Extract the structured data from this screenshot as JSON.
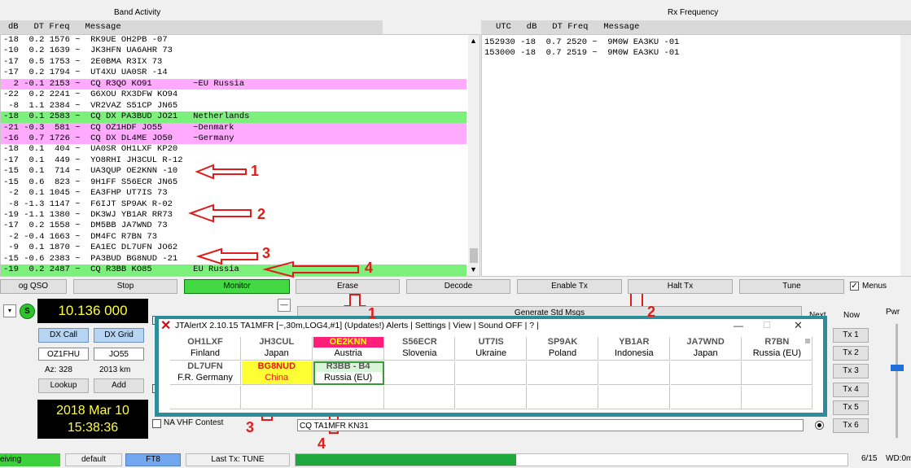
{
  "band_activity": {
    "title": "Band Activity",
    "header": "dB   DT Freq   Message",
    "rows": [
      {
        "text": "-18  0.2 1576 ~  RK9UE OH2PB -07",
        "bg": "#ffffff"
      },
      {
        "text": "-10  0.2 1639 ~  JK3HFN UA6AHR 73",
        "bg": "#ffffff"
      },
      {
        "text": "-17  0.5 1753 ~  2E0BMA R3IX 73",
        "bg": "#ffffff"
      },
      {
        "text": "-17  0.2 1794 ~  UT4XU UA0SR -14",
        "bg": "#ffffff"
      },
      {
        "text": "  2 -0.1 2153 ~  CQ R3QO KO91        ~EU Russia",
        "bg": "#ffaaff"
      },
      {
        "text": "-22  0.2 2241 ~  G6XOU RX3DFW KO94",
        "bg": "#ffffff"
      },
      {
        "text": " -8  1.1 2384 ~  VR2VAZ S51CP JN65",
        "bg": "#ffffff"
      },
      {
        "text": "-18  0.1 2583 ~  CQ DX PA3BUD JO21   Netherlands",
        "bg": "#7bf07b"
      },
      {
        "text": "-21 -0.3  581 ~  CQ OZ1HDF JO55      ~Denmark",
        "bg": "#ffaaff"
      },
      {
        "text": "-16  0.7 1726 ~  CQ DX DL4ME JO50    ~Germany",
        "bg": "#ffaaff"
      },
      {
        "text": "-18  0.1  404 ~  UA0SR OH1LXF KP20",
        "bg": "#ffffff"
      },
      {
        "text": "-17  0.1  449 ~  YO8RHI JH3CUL R-12",
        "bg": "#ffffff"
      },
      {
        "text": "-15  0.1  714 ~  UA3QUP OE2KNN -10",
        "bg": "#ffffff"
      },
      {
        "text": "-15  0.6  823 ~  9H1FF S56ECR JN65",
        "bg": "#ffffff"
      },
      {
        "text": " -2  0.1 1045 ~  EA3FHP UT7IS 73",
        "bg": "#ffffff"
      },
      {
        "text": " -8 -1.3 1147 ~  F6IJT SP9AK R-02",
        "bg": "#ffffff"
      },
      {
        "text": "-19 -1.1 1380 ~  DK3WJ YB1AR RR73",
        "bg": "#ffffff"
      },
      {
        "text": "-17  0.2 1558 ~  DM5BB JA7WND 73",
        "bg": "#ffffff"
      },
      {
        "text": " -2 -0.4 1663 ~  DM4FC R7BN 73",
        "bg": "#ffffff"
      },
      {
        "text": " -9  0.1 1870 ~  EA1EC DL7UFN JO62",
        "bg": "#ffffff"
      },
      {
        "text": "-15 -0.6 2383 ~  PA3BUD BG8NUD -21",
        "bg": "#ffffff"
      },
      {
        "text": "-19  0.2 2487 ~  CQ R3BB KO85        EU Russia",
        "bg": "#7bf07b"
      }
    ]
  },
  "rx_frequency": {
    "title": "Rx Frequency",
    "header": "UTC   dB   DT Freq   Message",
    "rows": [
      "152930 -18  0.7 2520 ~  9M0W EA3KU -01",
      "153000 -18  0.7 2519 ~  9M0W EA3KU -01"
    ]
  },
  "buttons": {
    "log_qso": "og QSO",
    "stop": "Stop",
    "monitor": "Monitor",
    "erase": "Erase",
    "decode": "Decode",
    "enable_tx": "Enable Tx",
    "halt_tx": "Halt Tx",
    "tune": "Tune",
    "menus": "Menus"
  },
  "left_panel": {
    "s_badge": "S",
    "frequency": "10.136 000",
    "dx_call_btn": "DX Call",
    "dx_grid_btn": "DX Grid",
    "dx_call": "OZ1FHU",
    "dx_grid": "JO55",
    "az": "Az: 328",
    "km": "2013 km",
    "lookup": "Lookup",
    "add": "Add",
    "date": "2018 Mar 10",
    "time": "15:38:36",
    "na_vhf": "NA VHF Contest"
  },
  "right_panel": {
    "next": "Next",
    "now": "Now",
    "pwr": "Pwr",
    "tx_buttons": [
      "Tx 1",
      "Tx 2",
      "Tx 3",
      "Tx 4",
      "Tx 5",
      "Tx 6"
    ],
    "gen_std": "Generate Std Msgs",
    "tx6_msg": "CQ TA1MFR KN31"
  },
  "status_bar": {
    "state": "eiving",
    "config": "default",
    "mode": "FT8",
    "last_tx": "Last Tx: TUNE",
    "counter": "6/15",
    "wd": "WD:0m"
  },
  "jtalert": {
    "title": "JTAlertX 2.10.15 TA1MFR [~,30m,LOG4,#1] (Updates!) Alerts | Settings | View | Sound OFF | ? |",
    "row1": [
      {
        "call": "OH1LXF",
        "country": "Finland",
        "bg": "#ffffff",
        "fg": "#555555"
      },
      {
        "call": "JH3CUL",
        "country": "Japan",
        "bg": "#ffffff",
        "fg": "#555555"
      },
      {
        "call": "OE2KNN",
        "country": "Austria",
        "bg": "#ff1f7a",
        "fg": "#ffff00"
      },
      {
        "call": "S56ECR",
        "country": "Slovenia",
        "bg": "#ffffff",
        "fg": "#555555"
      },
      {
        "call": "UT7IS",
        "country": "Ukraine",
        "bg": "#ffffff",
        "fg": "#555555"
      },
      {
        "call": "SP9AK",
        "country": "Poland",
        "bg": "#ffffff",
        "fg": "#555555"
      },
      {
        "call": "YB1AR",
        "country": "Indonesia",
        "bg": "#ffffff",
        "fg": "#555555"
      },
      {
        "call": "JA7WND",
        "country": "Japan",
        "bg": "#ffffff",
        "fg": "#555555"
      },
      {
        "call": "R7BN",
        "country": "Russia (EU)",
        "bg": "#ffffff",
        "fg": "#555555"
      }
    ],
    "row2": [
      {
        "call": "DL7UFN",
        "country": "F.R. Germany",
        "bg": "#ffffff",
        "fg": "#555555"
      },
      {
        "call": "BG8NUD",
        "country": "China",
        "bg": "#ffff33",
        "fg": "#e01b1b"
      },
      {
        "call": "R3BB - B4",
        "country": "Russia (EU)",
        "bg": "#d9f5d9",
        "fg": "#555555"
      }
    ]
  },
  "callouts": {
    "band": [
      "1",
      "2",
      "3",
      "4"
    ],
    "alert_top": [
      "1",
      "2"
    ],
    "alert_bottom": [
      "3",
      "4"
    ]
  }
}
